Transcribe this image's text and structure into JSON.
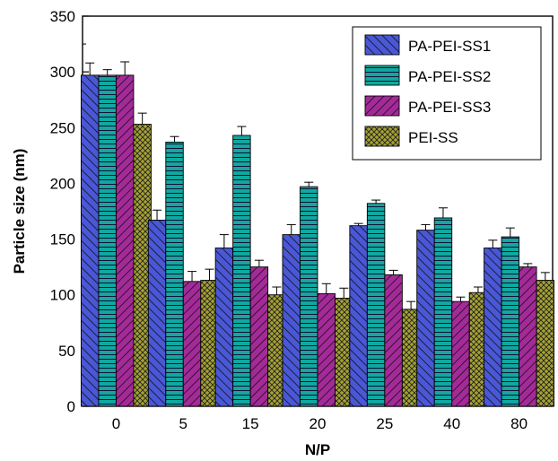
{
  "chart_data": {
    "type": "bar",
    "title": "",
    "xlabel": "N/P",
    "ylabel": "Particle size (nm)",
    "categories": [
      "0",
      "5",
      "15",
      "20",
      "25",
      "40",
      "80"
    ],
    "ylim": [
      0,
      350
    ],
    "yticks": [
      0,
      50,
      100,
      150,
      200,
      250,
      300,
      350
    ],
    "legend_position": "top-right",
    "error_bars": true,
    "series": [
      {
        "name": "PA-PEI-SS1",
        "color": "#2e3bb0",
        "pattern": "diagonal-lines",
        "values": [
          297,
          167,
          142,
          154,
          162,
          158,
          142
        ],
        "errors": [
          11,
          9,
          12,
          9,
          2,
          5,
          7
        ]
      },
      {
        "name": "PA-PEI-SS2",
        "color": "#0d8f8a",
        "pattern": "horizontal-lines",
        "values": [
          297,
          237,
          243,
          197,
          182,
          169,
          152
        ],
        "errors": [
          5,
          5,
          8,
          4,
          3,
          9,
          8
        ]
      },
      {
        "name": "PA-PEI-SS3",
        "color": "#8a1e7e",
        "pattern": "reverse-diagonal-lines",
        "values": [
          297,
          112,
          125,
          101,
          118,
          94,
          125
        ],
        "errors": [
          12,
          9,
          6,
          9,
          4,
          4,
          3
        ]
      },
      {
        "name": "PEI-SS",
        "color": "#8c8a26",
        "pattern": "crosshatch",
        "values": [
          253,
          113,
          100,
          97,
          87,
          102,
          113
        ],
        "errors": [
          10,
          10,
          7,
          9,
          7,
          5,
          7
        ]
      }
    ]
  }
}
